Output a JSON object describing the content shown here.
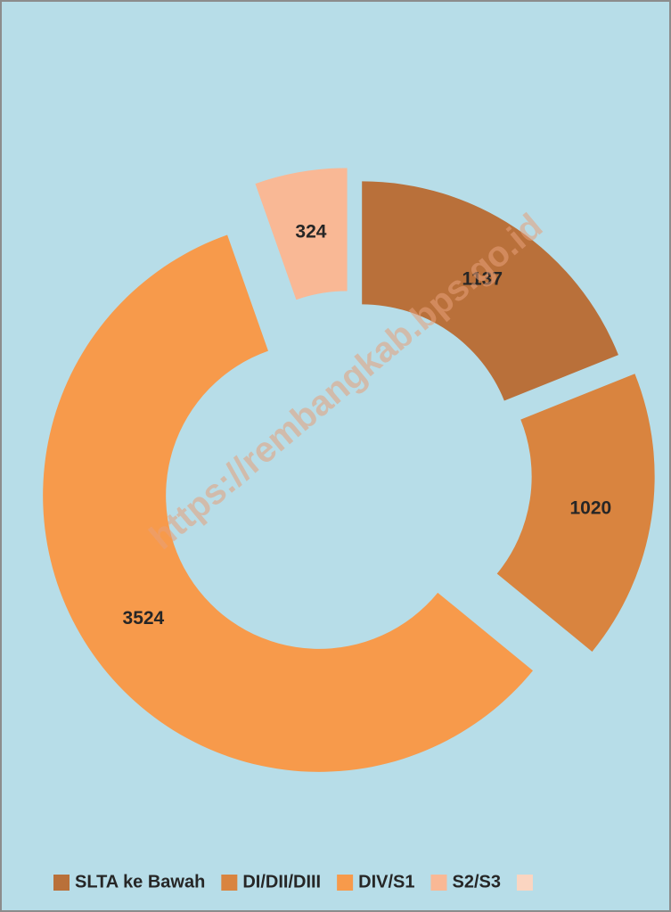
{
  "chart_data": {
    "type": "donut",
    "categories": [
      "SLTA ke Bawah",
      "DI/DII/DIII",
      "DIV/S1",
      "S2/S3",
      null
    ],
    "values": [
      1137,
      1020,
      3524,
      324,
      0
    ],
    "colors": [
      "#b9703a",
      "#d9843f",
      "#f79a4b",
      "#f9b895",
      "#fbd5c1"
    ],
    "legend": "bottom",
    "watermark": "https://rembangkab.bps.go.id"
  }
}
